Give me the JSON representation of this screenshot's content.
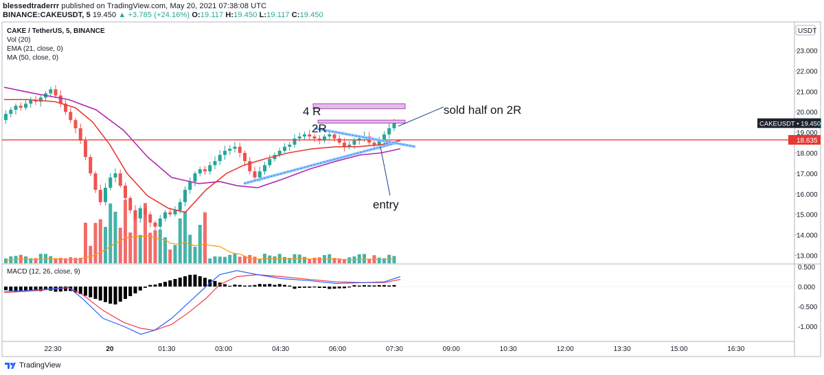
{
  "header": {
    "publisher": "blessedtraderrr",
    "published_text": "published on TradingView.com, May 20, 2021 07:38:08 UTC",
    "symbol": "BINANCE:CAKEUSDT, 5",
    "last": "19.450",
    "change": "▲ +3.785 (+24.16%)",
    "o_label": "O:",
    "o": "19.117",
    "h_label": "H:",
    "h": "19.450",
    "l_label": "L:",
    "l": "19.117",
    "c_label": "C:",
    "c": "19.450"
  },
  "legend": {
    "title": "CAKE / TetherUS, 5, BINANCE",
    "vol": "Vol (20)",
    "ema": "EMA (21, close, 0)",
    "ma": "MA (50, close, 0)",
    "macd": "MACD (12, 26, close, 9)"
  },
  "currency_button": "USDT",
  "price_ticks": [
    "23.000",
    "22.000",
    "21.000",
    "20.000",
    "19.000",
    "18.000",
    "17.000",
    "16.000",
    "15.000",
    "14.000",
    "13.000"
  ],
  "macd_ticks": [
    "0.500",
    "0.000",
    "-0.500",
    "-1.000"
  ],
  "time_ticks": [
    "22:30",
    "20",
    "01:30",
    "03:00",
    "04:30",
    "06:00",
    "07:30",
    "09:00",
    "10:30",
    "12:00",
    "13:30",
    "15:00",
    "16:30"
  ],
  "price_tag": "CAKEUSDT • 19.450",
  "line_tag": "18.635",
  "annotations": {
    "sold": "sold half on 2R",
    "four_r": "4 R",
    "two_r": "2R",
    "entry": "entry"
  },
  "footer": "TradingView",
  "colors": {
    "up": "#26a69a",
    "down": "#ef5350",
    "ema": "#e53935",
    "ma": "#b026b0",
    "vol_ma": "#ff9800",
    "macd": "#2962ff",
    "signal": "#f23645",
    "hline": "#e53935",
    "zone": "#e1bee7",
    "trendline": "#90caf9"
  },
  "chart_data": {
    "type": "candlestick",
    "symbol": "CAKE / TetherUS",
    "interval": "5",
    "exchange": "BINANCE",
    "y_range": [
      13.0,
      23.0
    ],
    "horizontal_line": 18.635,
    "last_price": 19.45,
    "x_tick_labels": [
      "22:30",
      "20",
      "01:30",
      "03:00",
      "04:30",
      "06:00",
      "07:30",
      "09:00",
      "10:30",
      "12:00",
      "13:30",
      "15:00",
      "16:30"
    ],
    "candles_close": [
      19.9,
      20.1,
      20.3,
      20.2,
      20.4,
      20.6,
      20.5,
      20.7,
      20.9,
      21.1,
      20.8,
      20.4,
      20.0,
      19.6,
      19.2,
      18.6,
      17.8,
      17.0,
      16.2,
      15.6,
      16.3,
      16.8,
      17.0,
      16.4,
      15.8,
      15.2,
      14.8,
      15.3,
      15.0,
      14.6,
      14.4,
      14.8,
      15.1,
      15.0,
      15.2,
      15.6,
      16.2,
      16.6,
      17.0,
      17.2,
      17.1,
      17.4,
      17.6,
      17.9,
      18.1,
      18.2,
      18.3,
      18.0,
      17.6,
      17.1,
      16.8,
      17.1,
      17.4,
      17.7,
      17.9,
      18.1,
      18.3,
      18.4,
      18.7,
      18.8,
      18.9,
      18.8,
      18.7,
      18.6,
      18.8,
      18.9,
      18.7,
      18.5,
      18.3,
      18.4,
      18.6,
      18.7,
      18.8,
      18.5,
      18.4,
      18.6,
      18.9,
      19.2,
      19.45
    ],
    "ema_21": "red line, from 20.7 descending to 15.0 near 01:30 then rising to 18.7",
    "ma_50": "magenta line, from 21.2 descending to 16.3 near 03:45 then rising to 18.2",
    "annotations": [
      {
        "text": "4 R",
        "zone": [
          20.15,
          20.4
        ]
      },
      {
        "text": "2R",
        "zone": [
          19.45,
          19.6
        ]
      },
      {
        "text": "entry",
        "price": 18.4
      },
      {
        "text": "sold half on 2R",
        "price": 19.5
      }
    ],
    "macd_range": [
      -1.2,
      0.6
    ]
  }
}
